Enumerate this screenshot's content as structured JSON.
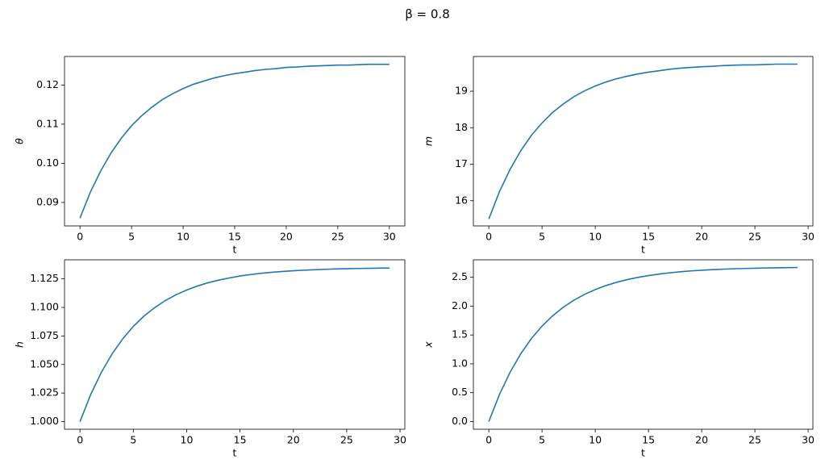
{
  "title": "β = 0.8",
  "chart_data": [
    {
      "type": "line",
      "xlabel": "t",
      "ylabel": "θ",
      "color": "#1f77b4",
      "x": [
        0,
        1,
        2,
        3,
        4,
        5,
        6,
        7,
        8,
        9,
        10,
        11,
        12,
        13,
        14,
        15,
        16,
        17,
        18,
        19,
        20,
        21,
        22,
        23,
        24,
        25,
        26,
        27,
        28,
        29,
        30
      ],
      "values": [
        0.086,
        0.0926,
        0.098,
        0.1026,
        0.1064,
        0.1096,
        0.1122,
        0.1144,
        0.1163,
        0.1178,
        0.1191,
        0.1202,
        0.121,
        0.1218,
        0.1224,
        0.1229,
        0.1233,
        0.1237,
        0.124,
        0.1242,
        0.1245,
        0.1246,
        0.1248,
        0.1249,
        0.125,
        0.1251,
        0.1251,
        0.1252,
        0.1253,
        0.1253,
        0.1253
      ],
      "xlim": [
        -1.5,
        31.5
      ],
      "ylim": [
        0.084,
        0.1273
      ],
      "xticks": [
        0,
        5,
        10,
        15,
        20,
        25,
        30
      ],
      "yticks": [
        0.09,
        {
          "value": 0.1,
          "label": "0.10"
        },
        0.11,
        0.12
      ]
    },
    {
      "type": "line",
      "xlabel": "t",
      "ylabel": "m",
      "color": "#1f77b4",
      "x": [
        0,
        1,
        2,
        3,
        4,
        5,
        6,
        7,
        8,
        9,
        10,
        11,
        12,
        13,
        14,
        15,
        16,
        17,
        18,
        19,
        20,
        21,
        22,
        23,
        24,
        25,
        26,
        27,
        28,
        29
      ],
      "values": [
        15.5,
        16.25,
        16.86,
        17.37,
        17.79,
        18.13,
        18.42,
        18.65,
        18.85,
        19.01,
        19.14,
        19.25,
        19.34,
        19.41,
        19.47,
        19.52,
        19.56,
        19.6,
        19.63,
        19.65,
        19.67,
        19.68,
        19.7,
        19.71,
        19.72,
        19.72,
        19.73,
        19.74,
        19.74,
        19.74
      ],
      "xlim": [
        -1.45,
        30.45
      ],
      "ylim": [
        15.31,
        19.95
      ],
      "xticks": [
        0,
        5,
        10,
        15,
        20,
        25,
        30
      ],
      "yticks": [
        16,
        17,
        18,
        19
      ]
    },
    {
      "type": "line",
      "xlabel": "t",
      "ylabel": "h",
      "color": "#1f77b4",
      "x": [
        0,
        1,
        2,
        3,
        4,
        5,
        6,
        7,
        8,
        9,
        10,
        11,
        12,
        13,
        14,
        15,
        16,
        17,
        18,
        19,
        20,
        21,
        22,
        23,
        24,
        25,
        26,
        27,
        28,
        29
      ],
      "values": [
        1.0,
        1.0236,
        1.0431,
        1.0592,
        1.0724,
        1.0834,
        1.0924,
        1.0998,
        1.106,
        1.1111,
        1.1152,
        1.1187,
        1.1216,
        1.1239,
        1.1258,
        1.1275,
        1.1288,
        1.1299,
        1.1308,
        1.1315,
        1.1321,
        1.1326,
        1.133,
        1.1334,
        1.1337,
        1.1339,
        1.1341,
        1.1342,
        1.1344,
        1.1345
      ],
      "xlim": [
        -1.45,
        30.45
      ],
      "ylim": [
        0.9933,
        1.1417
      ],
      "xticks": [
        0,
        5,
        10,
        15,
        20,
        25,
        30
      ],
      "yticks": [
        {
          "value": 1,
          "label": "1.000"
        },
        {
          "value": 1.025,
          "label": "1.025"
        },
        {
          "value": 1.05,
          "label": "1.050"
        },
        {
          "value": 1.075,
          "label": "1.075"
        },
        {
          "value": 1.1,
          "label": "1.100"
        },
        {
          "value": 1.125,
          "label": "1.125"
        }
      ]
    },
    {
      "type": "line",
      "xlabel": "t",
      "ylabel": "x",
      "color": "#1f77b4",
      "x": [
        0,
        1,
        2,
        3,
        4,
        5,
        6,
        7,
        8,
        9,
        10,
        11,
        12,
        13,
        14,
        15,
        16,
        17,
        18,
        19,
        20,
        21,
        22,
        23,
        24,
        25,
        26,
        27,
        28,
        29
      ],
      "values": [
        0,
        0.469,
        0.855,
        1.175,
        1.438,
        1.655,
        1.834,
        1.982,
        2.104,
        2.205,
        2.288,
        2.357,
        2.413,
        2.46,
        2.498,
        2.53,
        2.556,
        2.578,
        2.596,
        2.611,
        2.623,
        2.633,
        2.641,
        2.648,
        2.653,
        2.658,
        2.662,
        2.665,
        2.668,
        2.67
      ],
      "xlim": [
        -1.45,
        30.45
      ],
      "ylim": [
        -0.1335,
        2.8035
      ],
      "xticks": [
        0,
        5,
        10,
        15,
        20,
        25,
        30
      ],
      "yticks": [
        {
          "value": 0,
          "label": "0.0"
        },
        0.5,
        {
          "value": 1,
          "label": "1.0"
        },
        1.5,
        {
          "value": 2,
          "label": "2.0"
        },
        2.5
      ]
    }
  ]
}
